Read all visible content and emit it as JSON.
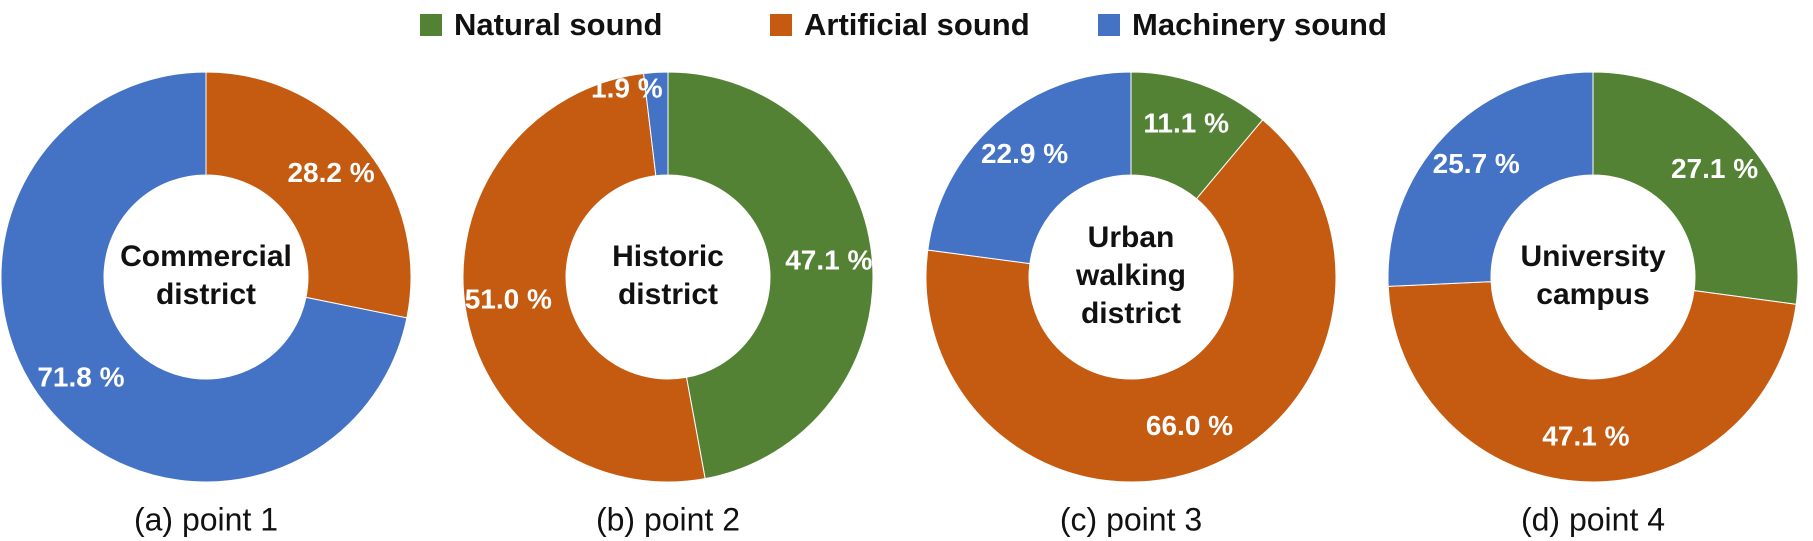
{
  "legend": [
    {
      "name": "Natural sound",
      "color": "#548235"
    },
    {
      "name": "Artificial sound",
      "color": "#c55a11"
    },
    {
      "name": "Machinery sound",
      "color": "#4472c4"
    }
  ],
  "chart_data": [
    {
      "type": "pie",
      "center_label": [
        "Commercial",
        "district"
      ],
      "caption": "(a)  point 1",
      "categories": [
        "Natural sound",
        "Artificial sound",
        "Machinery sound"
      ],
      "values": [
        0,
        28.2,
        71.8
      ],
      "value_labels": [
        null,
        "28.2 %",
        "71.8 %"
      ]
    },
    {
      "type": "pie",
      "center_label": [
        "Historic",
        "district"
      ],
      "caption": "(b)  point 2",
      "categories": [
        "Natural sound",
        "Artificial sound",
        "Machinery sound"
      ],
      "values": [
        47.1,
        51.0,
        1.9
      ],
      "value_labels": [
        "47.1 %",
        "51.0 %",
        "1.9 %"
      ]
    },
    {
      "type": "pie",
      "center_label": [
        "Urban",
        "walking",
        "district"
      ],
      "caption": "(c)  point 3",
      "categories": [
        "Natural sound",
        "Artificial sound",
        "Machinery sound"
      ],
      "values": [
        11.1,
        66.0,
        22.9
      ],
      "value_labels": [
        "11.1 %",
        "66.0 %",
        "22.9 %"
      ]
    },
    {
      "type": "pie",
      "center_label": [
        "University",
        "campus"
      ],
      "caption": "(d)  point 4",
      "categories": [
        "Natural sound",
        "Artificial sound",
        "Machinery sound"
      ],
      "values": [
        27.1,
        47.1,
        25.7
      ],
      "value_labels": [
        "27.1 %",
        "47.1 %",
        "25.7 %"
      ]
    }
  ]
}
